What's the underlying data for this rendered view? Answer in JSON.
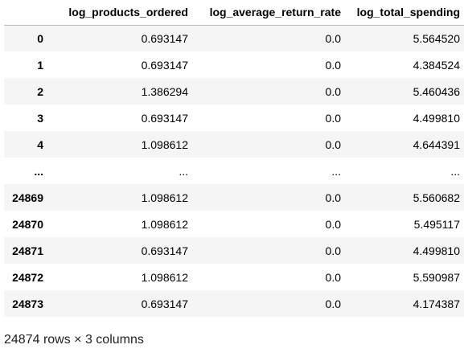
{
  "table": {
    "columns": [
      "log_products_ordered",
      "log_average_return_rate",
      "log_total_spending"
    ],
    "rows": [
      {
        "index": "0",
        "values": [
          "0.693147",
          "0.0",
          "5.564520"
        ]
      },
      {
        "index": "1",
        "values": [
          "0.693147",
          "0.0",
          "4.384524"
        ]
      },
      {
        "index": "2",
        "values": [
          "1.386294",
          "0.0",
          "5.460436"
        ]
      },
      {
        "index": "3",
        "values": [
          "0.693147",
          "0.0",
          "4.499810"
        ]
      },
      {
        "index": "4",
        "values": [
          "1.098612",
          "0.0",
          "4.644391"
        ]
      },
      {
        "index": "...",
        "values": [
          "...",
          "...",
          "..."
        ]
      },
      {
        "index": "24869",
        "values": [
          "1.098612",
          "0.0",
          "5.560682"
        ]
      },
      {
        "index": "24870",
        "values": [
          "1.098612",
          "0.0",
          "5.495117"
        ]
      },
      {
        "index": "24871",
        "values": [
          "0.693147",
          "0.0",
          "4.499810"
        ]
      },
      {
        "index": "24872",
        "values": [
          "1.098612",
          "0.0",
          "5.590987"
        ]
      },
      {
        "index": "24873",
        "values": [
          "0.693147",
          "0.0",
          "4.174387"
        ]
      }
    ]
  },
  "footer": {
    "shape": "24874 rows × 3 columns"
  }
}
